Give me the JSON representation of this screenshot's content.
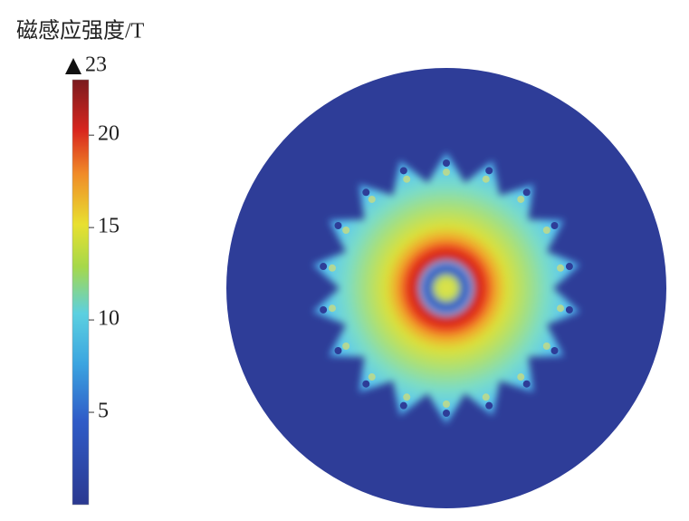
{
  "colorbar": {
    "title": "磁感应强度/T",
    "max_label": 23,
    "range": [
      0,
      23
    ],
    "ticks": [
      5,
      10,
      15,
      20
    ]
  }
}
